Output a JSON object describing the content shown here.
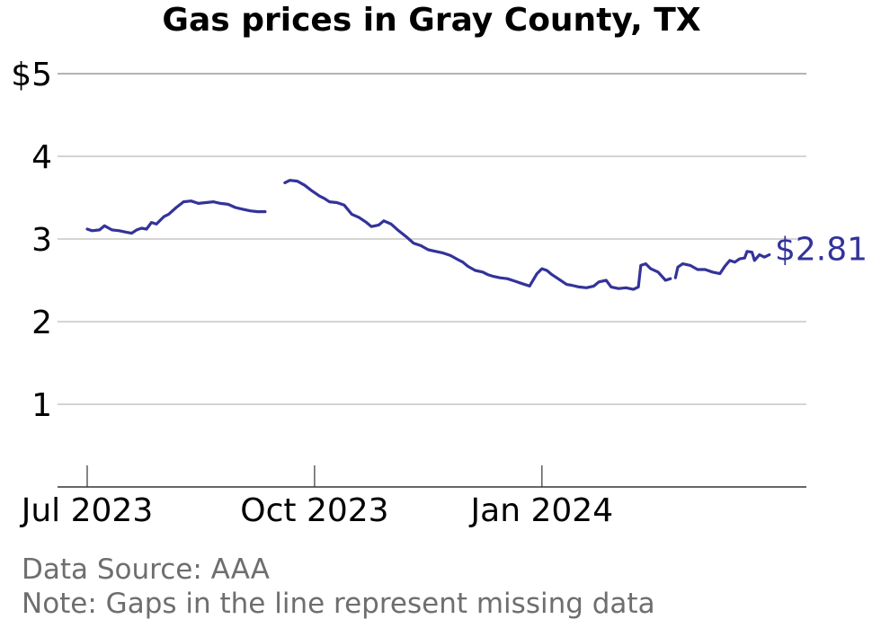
{
  "chart_data": {
    "type": "line",
    "title": "Gas prices in Gray County, TX",
    "xlabel": "",
    "ylabel": "",
    "ylim": [
      0,
      5
    ],
    "y_ticks": [
      {
        "value": 5,
        "label": "$5"
      },
      {
        "value": 4,
        "label": "4"
      },
      {
        "value": 3,
        "label": "3"
      },
      {
        "value": 2,
        "label": "2"
      },
      {
        "value": 1,
        "label": "1"
      }
    ],
    "xlim": [
      "2023-06-19",
      "2024-04-17"
    ],
    "x_ticks": [
      {
        "value": "2023-07-01",
        "label": "Jul 2023"
      },
      {
        "value": "2023-10-01",
        "label": "Oct 2023"
      },
      {
        "value": "2024-01-01",
        "label": "Jan 2024"
      }
    ],
    "grid": true,
    "line_color": "#33339a",
    "end_label": "$2.81",
    "series": [
      {
        "segments": [
          [
            [
              "2023-07-01",
              3.12
            ],
            [
              "2023-07-03",
              3.1
            ],
            [
              "2023-07-06",
              3.11
            ],
            [
              "2023-07-08",
              3.16
            ],
            [
              "2023-07-11",
              3.11
            ],
            [
              "2023-07-14",
              3.1
            ],
            [
              "2023-07-17",
              3.08
            ],
            [
              "2023-07-19",
              3.07
            ],
            [
              "2023-07-21",
              3.11
            ],
            [
              "2023-07-23",
              3.13
            ],
            [
              "2023-07-25",
              3.12
            ],
            [
              "2023-07-27",
              3.2
            ],
            [
              "2023-07-29",
              3.18
            ],
            [
              "2023-08-01",
              3.27
            ],
            [
              "2023-08-03",
              3.3
            ],
            [
              "2023-08-06",
              3.38
            ],
            [
              "2023-08-09",
              3.45
            ],
            [
              "2023-08-12",
              3.46
            ],
            [
              "2023-08-15",
              3.43
            ],
            [
              "2023-08-18",
              3.44
            ],
            [
              "2023-08-21",
              3.45
            ],
            [
              "2023-08-24",
              3.43
            ],
            [
              "2023-08-27",
              3.42
            ],
            [
              "2023-08-30",
              3.38
            ],
            [
              "2023-09-02",
              3.36
            ],
            [
              "2023-09-05",
              3.34
            ],
            [
              "2023-09-08",
              3.33
            ],
            [
              "2023-09-11",
              3.33
            ]
          ],
          [
            [
              "2023-09-19",
              3.68
            ],
            [
              "2023-09-21",
              3.71
            ],
            [
              "2023-09-24",
              3.7
            ],
            [
              "2023-09-27",
              3.65
            ],
            [
              "2023-09-30",
              3.58
            ],
            [
              "2023-10-03",
              3.52
            ],
            [
              "2023-10-05",
              3.49
            ],
            [
              "2023-10-07",
              3.45
            ],
            [
              "2023-10-10",
              3.44
            ],
            [
              "2023-10-13",
              3.41
            ],
            [
              "2023-10-16",
              3.3
            ],
            [
              "2023-10-19",
              3.26
            ],
            [
              "2023-10-22",
              3.2
            ],
            [
              "2023-10-24",
              3.15
            ],
            [
              "2023-10-27",
              3.17
            ],
            [
              "2023-10-29",
              3.22
            ],
            [
              "2023-11-01",
              3.18
            ],
            [
              "2023-11-04",
              3.1
            ],
            [
              "2023-11-07",
              3.03
            ],
            [
              "2023-11-10",
              2.95
            ],
            [
              "2023-11-13",
              2.92
            ],
            [
              "2023-11-16",
              2.87
            ],
            [
              "2023-11-19",
              2.85
            ],
            [
              "2023-11-22",
              2.83
            ],
            [
              "2023-11-25",
              2.8
            ],
            [
              "2023-11-28",
              2.75
            ],
            [
              "2023-11-30",
              2.72
            ],
            [
              "2023-12-02",
              2.67
            ],
            [
              "2023-12-05",
              2.62
            ],
            [
              "2023-12-08",
              2.6
            ],
            [
              "2023-12-10",
              2.57
            ],
            [
              "2023-12-12",
              2.55
            ],
            [
              "2023-12-15",
              2.53
            ],
            [
              "2023-12-18",
              2.52
            ],
            [
              "2023-12-21",
              2.49
            ],
            [
              "2023-12-24",
              2.46
            ],
            [
              "2023-12-27",
              2.43
            ],
            [
              "2023-12-30",
              2.58
            ],
            [
              "2024-01-01",
              2.64
            ],
            [
              "2024-01-03",
              2.62
            ],
            [
              "2024-01-05",
              2.57
            ],
            [
              "2024-01-08",
              2.51
            ],
            [
              "2024-01-11",
              2.45
            ],
            [
              "2024-01-13",
              2.44
            ],
            [
              "2024-01-16",
              2.42
            ],
            [
              "2024-01-19",
              2.41
            ],
            [
              "2024-01-22",
              2.43
            ],
            [
              "2024-01-24",
              2.48
            ],
            [
              "2024-01-27",
              2.5
            ],
            [
              "2024-01-29",
              2.42
            ],
            [
              "2024-02-01",
              2.4
            ],
            [
              "2024-02-04",
              2.41
            ],
            [
              "2024-02-07",
              2.39
            ],
            [
              "2024-02-09",
              2.42
            ],
            [
              "2024-02-10",
              2.68
            ],
            [
              "2024-02-12",
              2.7
            ],
            [
              "2024-02-14",
              2.64
            ],
            [
              "2024-02-17",
              2.6
            ],
            [
              "2024-02-20",
              2.5
            ],
            [
              "2024-02-22",
              2.52
            ]
          ],
          [
            [
              "2024-02-24",
              2.53
            ],
            [
              "2024-02-25",
              2.66
            ],
            [
              "2024-02-27",
              2.7
            ],
            [
              "2024-03-01",
              2.68
            ],
            [
              "2024-03-04",
              2.63
            ],
            [
              "2024-03-07",
              2.63
            ],
            [
              "2024-03-10",
              2.6
            ],
            [
              "2024-03-13",
              2.58
            ],
            [
              "2024-03-15",
              2.67
            ],
            [
              "2024-03-17",
              2.74
            ],
            [
              "2024-03-19",
              2.72
            ],
            [
              "2024-03-21",
              2.76
            ],
            [
              "2024-03-23",
              2.77
            ],
            [
              "2024-03-24",
              2.85
            ],
            [
              "2024-03-26",
              2.84
            ],
            [
              "2024-03-27",
              2.74
            ],
            [
              "2024-03-29",
              2.81
            ],
            [
              "2024-03-31",
              2.78
            ],
            [
              "2024-04-02",
              2.81
            ]
          ]
        ]
      }
    ]
  },
  "footer": {
    "source": "Data Source: AAA",
    "note": "Note: Gaps in the line represent missing data"
  }
}
